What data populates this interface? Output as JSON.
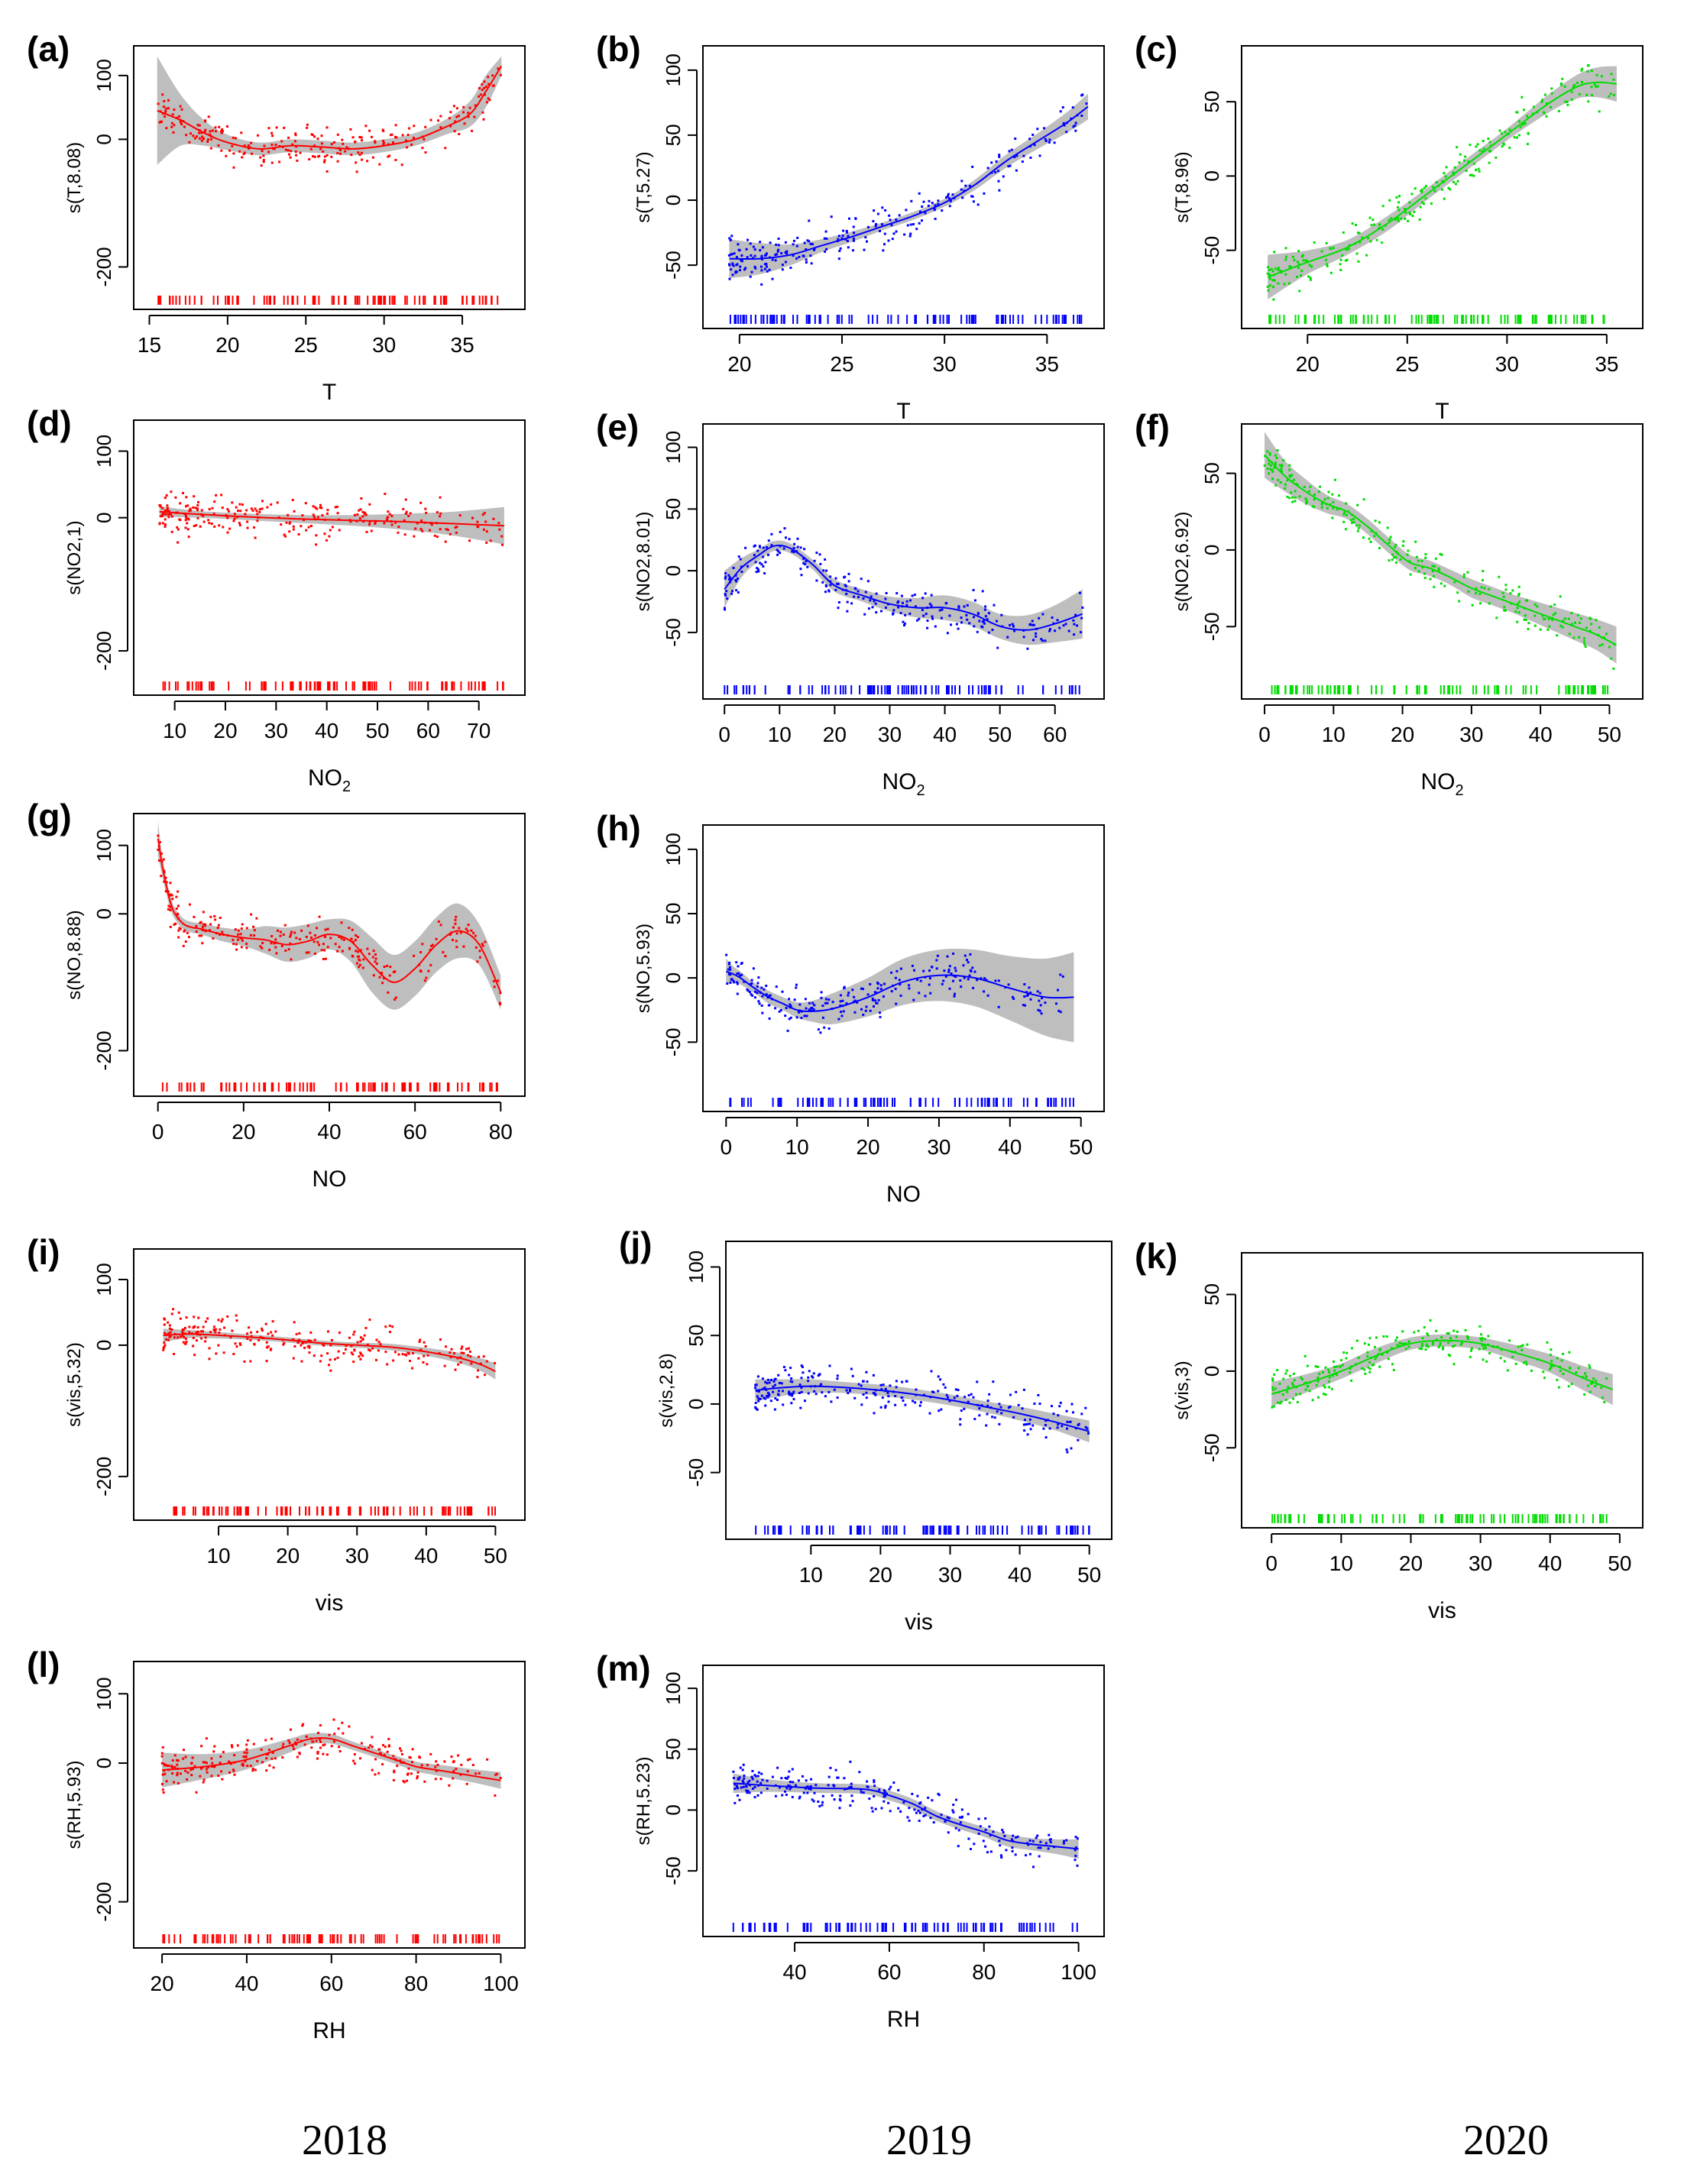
{
  "figure": {
    "year_labels": [
      "2018",
      "2019",
      "2020"
    ],
    "colors": {
      "2018": "#ff0000",
      "2019": "#0000ff",
      "2020": "#00dd00",
      "band": "#bebebe",
      "frame": "#000000"
    }
  },
  "chart_data": [
    {
      "id": "a",
      "label": "(a)",
      "type": "line",
      "year": "2018",
      "color": "#ff0000",
      "ylabel": "s(T,8.08)",
      "xlabel": "T",
      "xlabel_sub": "",
      "xlim": [
        15,
        38
      ],
      "ylim": [
        -250,
        130
      ],
      "xticks": [
        15,
        20,
        25,
        30,
        35
      ],
      "yticks": [
        100,
        0,
        -200
      ],
      "x": [
        15.5,
        17,
        18.5,
        20,
        22,
        24,
        26,
        28,
        30,
        32,
        34,
        35.5,
        36.5,
        37.5
      ],
      "y": [
        45,
        30,
        10,
        -5,
        -15,
        -10,
        -12,
        -15,
        -10,
        0,
        20,
        40,
        75,
        115
      ],
      "band_halfwidth": [
        85,
        40,
        20,
        12,
        10,
        10,
        10,
        10,
        10,
        10,
        12,
        20,
        25,
        15
      ]
    },
    {
      "id": "b",
      "label": "(b)",
      "type": "line",
      "year": "2019",
      "color": "#0000ff",
      "ylabel": "s(T,5.27)",
      "xlabel": "T",
      "xlabel_sub": "",
      "xlim": [
        19,
        37
      ],
      "ylim": [
        -90,
        110
      ],
      "xticks": [
        20,
        25,
        30,
        35
      ],
      "yticks": [
        100,
        50,
        0,
        -50
      ],
      "x": [
        19.5,
        21,
        22.5,
        24,
        25.5,
        27,
        28.5,
        30,
        31.5,
        33,
        34.5,
        36,
        37
      ],
      "y": [
        -45,
        -45,
        -42,
        -35,
        -28,
        -20,
        -12,
        -2,
        12,
        30,
        45,
        60,
        72
      ],
      "band_halfwidth": [
        15,
        12,
        8,
        5,
        4,
        3,
        3,
        3,
        4,
        5,
        6,
        8,
        10
      ]
    },
    {
      "id": "c",
      "label": "(c)",
      "type": "line",
      "year": "2020",
      "color": "#00dd00",
      "ylabel": "s(T,8.96)",
      "xlabel": "T",
      "xlabel_sub": "",
      "xlim": [
        17.5,
        36
      ],
      "ylim": [
        -95,
        80
      ],
      "xticks": [
        20,
        25,
        30,
        35
      ],
      "yticks": [
        50,
        0,
        -50
      ],
      "x": [
        18,
        20,
        22,
        24,
        26,
        28,
        30,
        32,
        33.5,
        34.5,
        35.5
      ],
      "y": [
        -68,
        -58,
        -48,
        -32,
        -12,
        8,
        28,
        48,
        60,
        63,
        62
      ],
      "band_halfwidth": [
        15,
        8,
        5,
        5,
        4,
        4,
        4,
        6,
        8,
        10,
        12
      ]
    },
    {
      "id": "d",
      "label": "(d)",
      "type": "line",
      "year": "2018",
      "color": "#ff0000",
      "ylabel": "s(NO2,1)",
      "xlabel": "NO",
      "xlabel_sub": "2",
      "xlim": [
        5,
        76
      ],
      "ylim": [
        -250,
        130
      ],
      "xticks": [
        10,
        20,
        30,
        40,
        50,
        60,
        70
      ],
      "yticks": [
        100,
        0,
        -200
      ],
      "x": [
        7,
        15,
        25,
        35,
        45,
        55,
        65,
        75
      ],
      "y": [
        9,
        5,
        1,
        -2,
        -4,
        -6,
        -9,
        -12
      ],
      "band_halfwidth": [
        8,
        5,
        5,
        6,
        8,
        12,
        18,
        28
      ]
    },
    {
      "id": "e",
      "label": "(e)",
      "type": "line",
      "year": "2019",
      "color": "#0000ff",
      "ylabel": "s(NO2,8.01)",
      "xlabel": "NO",
      "xlabel_sub": "2",
      "xlim": [
        -1,
        66
      ],
      "ylim": [
        -95,
        110
      ],
      "xticks": [
        0,
        10,
        20,
        30,
        40,
        50,
        60
      ],
      "yticks": [
        100,
        50,
        0,
        -50
      ],
      "x": [
        0,
        3,
        6,
        9,
        12,
        16,
        20,
        25,
        30,
        35,
        40,
        45,
        50,
        55,
        60,
        65
      ],
      "y": [
        -15,
        2,
        12,
        20,
        18,
        5,
        -12,
        -20,
        -27,
        -30,
        -30,
        -35,
        -45,
        -48,
        -43,
        -35
      ],
      "band_halfwidth": [
        15,
        8,
        5,
        4,
        4,
        4,
        5,
        5,
        6,
        8,
        10,
        10,
        10,
        12,
        15,
        20
      ]
    },
    {
      "id": "f",
      "label": "(f)",
      "type": "line",
      "year": "2020",
      "color": "#00dd00",
      "ylabel": "s(NO2,6.92)",
      "xlabel": "NO",
      "xlabel_sub": "2",
      "xlim": [
        -1,
        52.5
      ],
      "ylim": [
        -90,
        75
      ],
      "xticks": [
        0,
        10,
        20,
        30,
        40,
        50
      ],
      "yticks": [
        50,
        0,
        -50
      ],
      "x": [
        0,
        3,
        6,
        9,
        12,
        15,
        18,
        21,
        24,
        27,
        30,
        33,
        36,
        39,
        42,
        45,
        48,
        51
      ],
      "y": [
        62,
        48,
        38,
        30,
        25,
        15,
        3,
        -8,
        -12,
        -18,
        -25,
        -30,
        -35,
        -40,
        -45,
        -50,
        -55,
        -62
      ],
      "band_halfwidth": [
        15,
        10,
        8,
        6,
        5,
        5,
        5,
        5,
        5,
        5,
        6,
        6,
        6,
        7,
        8,
        9,
        10,
        12
      ]
    },
    {
      "id": "g",
      "label": "(g)",
      "type": "line",
      "year": "2018",
      "color": "#ff0000",
      "ylabel": "s(NO,8.88)",
      "xlabel": "NO",
      "xlabel_sub": "",
      "xlim": [
        -2,
        82
      ],
      "ylim": [
        -250,
        130
      ],
      "xticks": [
        0,
        20,
        40,
        60,
        80
      ],
      "yticks": [
        100,
        0,
        -200
      ],
      "x": [
        0,
        0.5,
        1,
        2,
        3,
        4,
        6,
        8,
        10,
        15,
        20,
        25,
        30,
        35,
        40,
        45,
        50,
        55,
        60,
        65,
        70,
        75,
        80
      ],
      "y": [
        110,
        90,
        70,
        40,
        15,
        0,
        -15,
        -20,
        -22,
        -30,
        -35,
        -38,
        -45,
        -40,
        -30,
        -40,
        -75,
        -100,
        -80,
        -45,
        -25,
        -45,
        -115
      ],
      "band_halfwidth": [
        25,
        20,
        15,
        12,
        10,
        8,
        8,
        8,
        8,
        10,
        12,
        20,
        25,
        25,
        22,
        30,
        40,
        40,
        40,
        40,
        40,
        30,
        25
      ]
    },
    {
      "id": "h",
      "label": "(h)",
      "type": "line",
      "year": "2019",
      "color": "#0000ff",
      "ylabel": "s(NO,5.93)",
      "xlabel": "NO",
      "xlabel_sub": "",
      "xlim": [
        -1,
        51
      ],
      "ylim": [
        -95,
        110
      ],
      "xticks": [
        0,
        10,
        20,
        30,
        40,
        50
      ],
      "yticks": [
        100,
        50,
        0,
        -50
      ],
      "x": [
        0,
        1,
        2,
        4,
        6,
        8,
        10,
        12,
        15,
        20,
        25,
        30,
        35,
        40,
        45,
        49
      ],
      "y": [
        5,
        3,
        0,
        -8,
        -15,
        -20,
        -25,
        -26,
        -24,
        -15,
        -3,
        2,
        0,
        -8,
        -15,
        -15
      ],
      "band_halfwidth": [
        10,
        6,
        5,
        4,
        5,
        5,
        6,
        8,
        12,
        15,
        18,
        20,
        22,
        25,
        30,
        35
      ]
    },
    {
      "id": "i",
      "label": "(i)",
      "type": "line",
      "year": "2018",
      "color": "#ff0000",
      "ylabel": "s(vis,5.32)",
      "xlabel": "vis",
      "xlabel_sub": "",
      "xlim": [
        0,
        52
      ],
      "ylim": [
        -250,
        130
      ],
      "xticks": [
        10,
        20,
        30,
        40,
        50
      ],
      "yticks": [
        100,
        0,
        -200
      ],
      "x": [
        2,
        6,
        10,
        15,
        20,
        25,
        30,
        35,
        40,
        45,
        48,
        50
      ],
      "y": [
        15,
        17,
        15,
        12,
        8,
        3,
        0,
        -3,
        -10,
        -20,
        -30,
        -40
      ],
      "band_halfwidth": [
        10,
        6,
        5,
        4,
        4,
        4,
        4,
        5,
        6,
        8,
        10,
        12
      ]
    },
    {
      "id": "j",
      "label": "(j)",
      "type": "line",
      "year": "2019",
      "color": "#0000ff",
      "ylabel": "s(vis,2.8)",
      "xlabel": "vis",
      "xlabel_sub": "",
      "xlim": [
        0,
        51
      ],
      "ylim": [
        -90,
        110
      ],
      "xticks": [
        10,
        20,
        30,
        40,
        50
      ],
      "yticks": [
        100,
        50,
        0,
        -50
      ],
      "x": [
        2,
        6,
        10,
        15,
        20,
        25,
        30,
        35,
        40,
        45,
        50
      ],
      "y": [
        10,
        12,
        13,
        12,
        10,
        7,
        3,
        -2,
        -7,
        -13,
        -20
      ],
      "band_halfwidth": [
        8,
        6,
        5,
        4,
        4,
        4,
        4,
        4,
        5,
        6,
        8
      ]
    },
    {
      "id": "k",
      "label": "(k)",
      "type": "line",
      "year": "2020",
      "color": "#00dd00",
      "ylabel": "s(vis,3)",
      "xlabel": "vis",
      "xlabel_sub": "",
      "xlim": [
        -2,
        51
      ],
      "ylim": [
        -95,
        70
      ],
      "xticks": [
        0,
        10,
        20,
        30,
        40,
        50
      ],
      "yticks": [
        50,
        0,
        -50
      ],
      "x": [
        0,
        5,
        10,
        15,
        20,
        25,
        30,
        35,
        40,
        45,
        49
      ],
      "y": [
        -15,
        -8,
        0,
        10,
        18,
        20,
        18,
        12,
        5,
        -5,
        -12
      ],
      "band_halfwidth": [
        8,
        6,
        5,
        5,
        4,
        4,
        4,
        5,
        6,
        8,
        10
      ]
    },
    {
      "id": "l",
      "label": "(l)",
      "type": "line",
      "year": "2018",
      "color": "#ff0000",
      "ylabel": "s(RH,5.93)",
      "xlabel": "RH",
      "xlabel_sub": "",
      "xlim": [
        17,
        102
      ],
      "ylim": [
        -250,
        130
      ],
      "xticks": [
        20,
        40,
        60,
        80,
        100
      ],
      "yticks": [
        100,
        0,
        -200
      ],
      "x": [
        20,
        30,
        40,
        50,
        55,
        60,
        65,
        70,
        75,
        80,
        85,
        90,
        95,
        100
      ],
      "y": [
        -10,
        -5,
        5,
        25,
        35,
        35,
        25,
        15,
        5,
        -5,
        -10,
        -15,
        -20,
        -25
      ],
      "band_halfwidth": [
        25,
        18,
        14,
        10,
        8,
        7,
        6,
        6,
        6,
        7,
        8,
        9,
        10,
        12
      ]
    },
    {
      "id": "m",
      "label": "(m)",
      "type": "line",
      "year": "2019",
      "color": "#0000ff",
      "ylabel": "s(RH,5.23)",
      "xlabel": "RH",
      "xlabel_sub": "",
      "xlim": [
        24,
        102
      ],
      "ylim": [
        -95,
        110
      ],
      "xticks": [
        40,
        60,
        80,
        100
      ],
      "yticks": [
        100,
        50,
        0,
        -50
      ],
      "x": [
        27,
        35,
        45,
        55,
        60,
        65,
        70,
        75,
        80,
        85,
        90,
        95,
        100
      ],
      "y": [
        22,
        20,
        18,
        17,
        12,
        5,
        -5,
        -12,
        -18,
        -25,
        -28,
        -30,
        -32
      ],
      "band_halfwidth": [
        8,
        5,
        4,
        4,
        4,
        4,
        4,
        4,
        4,
        5,
        5,
        6,
        8
      ]
    }
  ]
}
